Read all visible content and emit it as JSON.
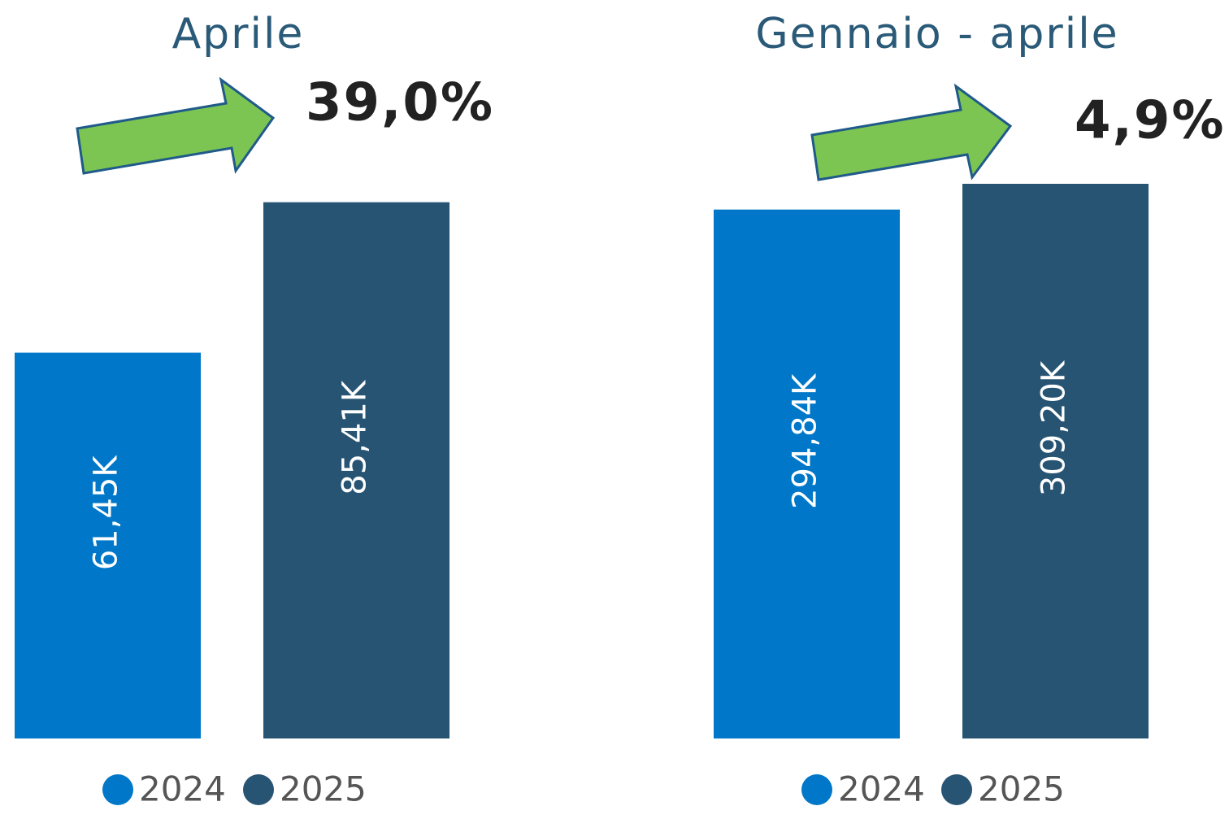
{
  "chart_data": [
    {
      "type": "bar",
      "title": "Aprile",
      "annotation": "39,0%",
      "series": [
        {
          "name": "2024",
          "color": "#0077c8",
          "values": [
            61450
          ],
          "value_labels": [
            "61,45K"
          ]
        },
        {
          "name": "2025",
          "color": "#275473",
          "values": [
            85410
          ],
          "value_labels": [
            "85,41K"
          ]
        }
      ],
      "ylim": [
        0,
        100000
      ]
    },
    {
      "type": "bar",
      "title": "Gennaio - aprile",
      "annotation": "4,9%",
      "series": [
        {
          "name": "2024",
          "color": "#0077c8",
          "values": [
            294840
          ],
          "value_labels": [
            "294,84K"
          ]
        },
        {
          "name": "2025",
          "color": "#275473",
          "values": [
            309200
          ],
          "value_labels": [
            "309,20K"
          ]
        }
      ],
      "ylim": [
        0,
        350000
      ]
    }
  ]
}
